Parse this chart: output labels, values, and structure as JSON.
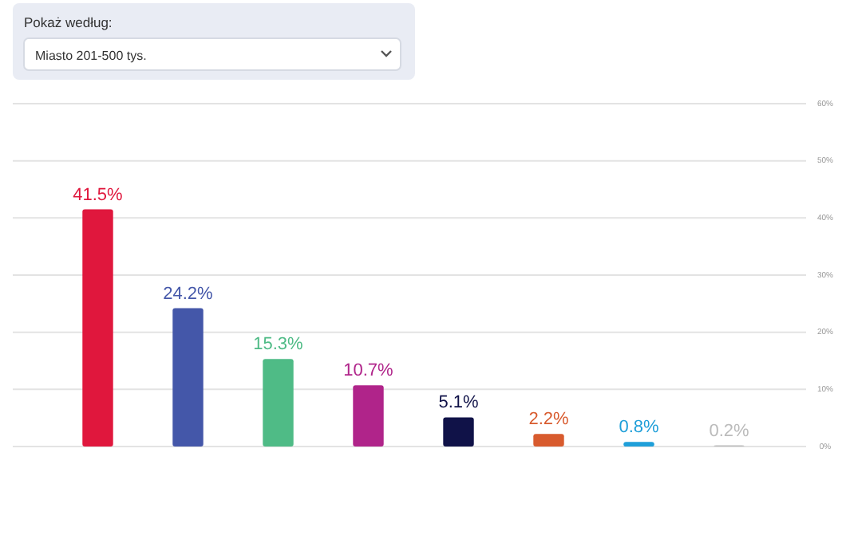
{
  "chart_data": {
    "type": "bar",
    "title": "Pokaż według:",
    "subtitle": "Miasto 201-500 tys.",
    "categories": [
      null,
      null,
      null,
      null,
      null,
      null,
      null,
      null
    ],
    "values": [
      41.5,
      24.2,
      15.3,
      10.7,
      5.1,
      2.2,
      0.8,
      0.2
    ],
    "colors": [
      "#e0173d",
      "#4457a9",
      "#4fbb86",
      "#b0248a",
      "#101248",
      "#d85b2e",
      "#1f9fd9",
      "#bbbbbb"
    ],
    "value_labels": [
      "41.5%",
      "24.2%",
      "15.3%",
      "10.7%",
      "5.1%",
      "2.2%",
      "0.8%",
      "0.2%"
    ],
    "ylim": [
      0,
      60
    ],
    "yticks": [
      {
        "value": 0,
        "label": "0%"
      },
      {
        "value": 10,
        "label": "10%"
      },
      {
        "value": 20,
        "label": "20%"
      },
      {
        "value": 30,
        "label": "30%"
      },
      {
        "value": 40,
        "label": "40%"
      },
      {
        "value": 50,
        "label": "50%"
      },
      {
        "value": 60,
        "label": "60%"
      }
    ],
    "grid": "y"
  }
}
